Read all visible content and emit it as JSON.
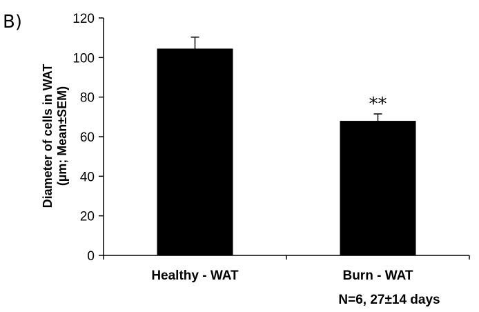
{
  "panel_label": "B)",
  "colors": {
    "bar": "#000000",
    "axis": "#000000"
  },
  "chart_data": {
    "type": "bar",
    "title": "",
    "xlabel": "",
    "ylabel_line1": "Diameter of cells in WAT",
    "ylabel_line2": "(µm; Mean±SEM)",
    "categories": [
      "Healthy - WAT",
      "Burn - WAT"
    ],
    "values": [
      104.5,
      68
    ],
    "errors": [
      5.8,
      3.5
    ],
    "significance": [
      "",
      "**"
    ],
    "ylim": [
      0,
      120
    ],
    "yticks": [
      0,
      20,
      40,
      60,
      80,
      100,
      120
    ],
    "grid": false,
    "note": "N=6, 27±14 days"
  }
}
